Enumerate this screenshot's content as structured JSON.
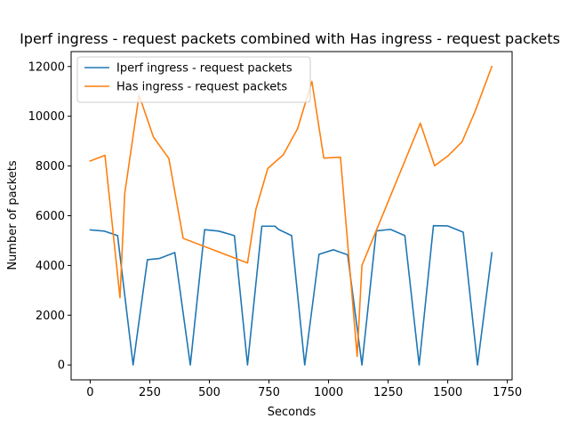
{
  "chart_data": {
    "type": "line",
    "title": "Iperf ingress - request packets combined with Has ingress - request packets",
    "xlabel": "Seconds",
    "ylabel": "Number of packets",
    "xlim": [
      -80,
      1770
    ],
    "ylim": [
      -600,
      12600
    ],
    "xticks": [
      0,
      250,
      500,
      750,
      1000,
      1250,
      1500,
      1750
    ],
    "yticks": [
      0,
      2000,
      4000,
      6000,
      8000,
      10000,
      12000
    ],
    "grid": false,
    "legend_position": "top-left",
    "series": [
      {
        "name": "Iperf ingress - request packets",
        "color": "#1f77b4",
        "x": [
          0,
          60,
          115,
          180,
          240,
          290,
          355,
          420,
          480,
          540,
          605,
          660,
          720,
          775,
          790,
          845,
          900,
          960,
          1020,
          1080,
          1140,
          1200,
          1260,
          1320,
          1380,
          1440,
          1500,
          1565,
          1625,
          1685
        ],
        "y": [
          5430,
          5380,
          5200,
          0,
          4230,
          4280,
          4520,
          0,
          5440,
          5380,
          5200,
          0,
          5580,
          5580,
          5450,
          5200,
          0,
          4450,
          4630,
          4430,
          0,
          5390,
          5450,
          5200,
          0,
          5600,
          5590,
          5340,
          0,
          4510
        ]
      },
      {
        "name": "Has ingress - request packets",
        "color": "#ff7f0e",
        "x": [
          0,
          62,
          125,
          145,
          205,
          265,
          330,
          390,
          660,
          695,
          745,
          810,
          870,
          930,
          980,
          1050,
          1120,
          1140,
          1385,
          1445,
          1500,
          1560,
          1615,
          1685
        ],
        "y": [
          8200,
          8430,
          2700,
          6900,
          10850,
          9170,
          8300,
          5090,
          4100,
          6250,
          7900,
          8450,
          9500,
          11400,
          8320,
          8350,
          340,
          4000,
          9720,
          8010,
          8400,
          8970,
          10200,
          12000
        ]
      }
    ]
  }
}
